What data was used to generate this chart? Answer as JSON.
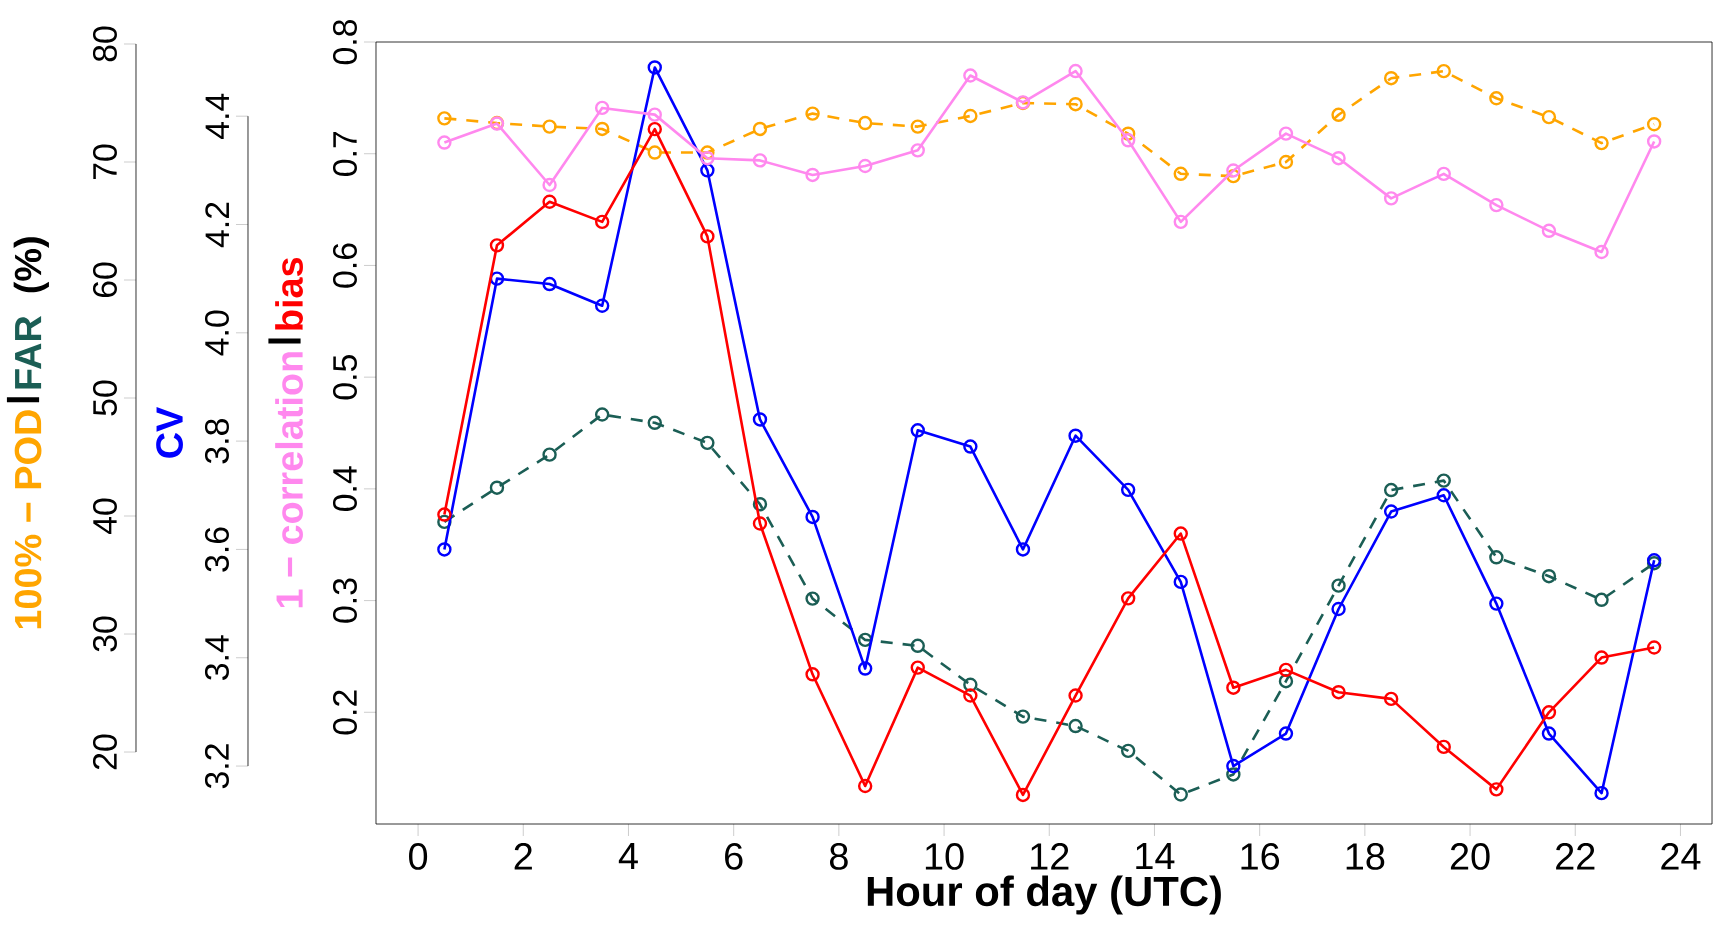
{
  "chart_data": {
    "type": "line",
    "xlabel": "Hour of day (UTC)",
    "y3label": "(%)",
    "x": [
      0.5,
      1.5,
      2.5,
      3.5,
      4.5,
      5.5,
      6.5,
      7.5,
      8.5,
      9.5,
      10.5,
      11.5,
      12.5,
      13.5,
      14.5,
      15.5,
      16.5,
      17.5,
      18.5,
      19.5,
      20.5,
      21.5,
      22.5,
      23.5
    ],
    "xlim": [
      -0.8,
      24.6
    ],
    "xticks": [
      0,
      2,
      4,
      6,
      8,
      10,
      12,
      14,
      16,
      18,
      20,
      22,
      24
    ],
    "ylim": [
      0.1,
      0.8
    ],
    "yticks": [
      0.2,
      0.3,
      0.4,
      0.5,
      0.6,
      0.7,
      0.8
    ],
    "y2lim": [
      3.093,
      4.537
    ],
    "y2ticks": [
      3.2,
      3.4,
      3.6,
      3.8,
      {
        "value": 4,
        "label": "4.0"
      },
      4.2,
      4.4
    ],
    "y3lim": [
      13.9,
      80.17
    ],
    "y3ticks": [
      20,
      30,
      40,
      50,
      60,
      70,
      80
    ],
    "marker": "circle",
    "series": [
      {
        "name": "100% − POD",
        "color": "#ffa500",
        "axis": "y3",
        "line_style": "dashed",
        "values": [
          73.7,
          73.3,
          73.0,
          72.8,
          70.8,
          70.8,
          72.8,
          74.1,
          73.3,
          73.0,
          73.9,
          75.0,
          74.9,
          72.4,
          69.0,
          68.8,
          70.0,
          74.0,
          77.1,
          77.7,
          75.4,
          73.8,
          71.6,
          73.2
        ]
      },
      {
        "name": "FAR",
        "color": "#1b5e55",
        "axis": "y3",
        "line_style": "dashed",
        "values": [
          39.5,
          42.4,
          45.2,
          48.6,
          47.9,
          46.2,
          41.0,
          33.0,
          29.5,
          29.0,
          25.7,
          23.0,
          22.2,
          20.1,
          16.4,
          18.1,
          26.0,
          34.1,
          42.2,
          43.0,
          36.5,
          34.9,
          32.9,
          36.0
        ]
      },
      {
        "name": "CV",
        "color": "#0000ff",
        "axis": "y2",
        "line_style": "solid",
        "values": [
          3.6,
          4.1,
          4.09,
          4.05,
          4.49,
          4.3,
          3.84,
          3.66,
          3.38,
          3.82,
          3.79,
          3.6,
          3.81,
          3.71,
          3.54,
          3.2,
          3.26,
          3.49,
          3.67,
          3.7,
          3.5,
          3.26,
          3.15,
          3.58
        ]
      },
      {
        "name": "1 − correlation",
        "color": "#ff88ee",
        "axis": "y",
        "line_style": "solid",
        "values": [
          0.71,
          0.727,
          0.672,
          0.741,
          0.735,
          0.696,
          0.694,
          0.681,
          0.689,
          0.703,
          0.77,
          0.746,
          0.774,
          0.712,
          0.639,
          0.685,
          0.718,
          0.696,
          0.66,
          0.682,
          0.654,
          0.631,
          0.612,
          0.711
        ]
      },
      {
        "name": "bias",
        "color": "#ff0000",
        "axis": "y",
        "line_style": "solid",
        "values": [
          0.377,
          0.618,
          0.657,
          0.639,
          0.722,
          0.626,
          0.369,
          0.234,
          0.134,
          0.24,
          0.215,
          0.126,
          0.215,
          0.302,
          0.36,
          0.222,
          0.238,
          0.218,
          0.212,
          0.169,
          0.131,
          0.2,
          0.249,
          0.258
        ]
      }
    ]
  }
}
